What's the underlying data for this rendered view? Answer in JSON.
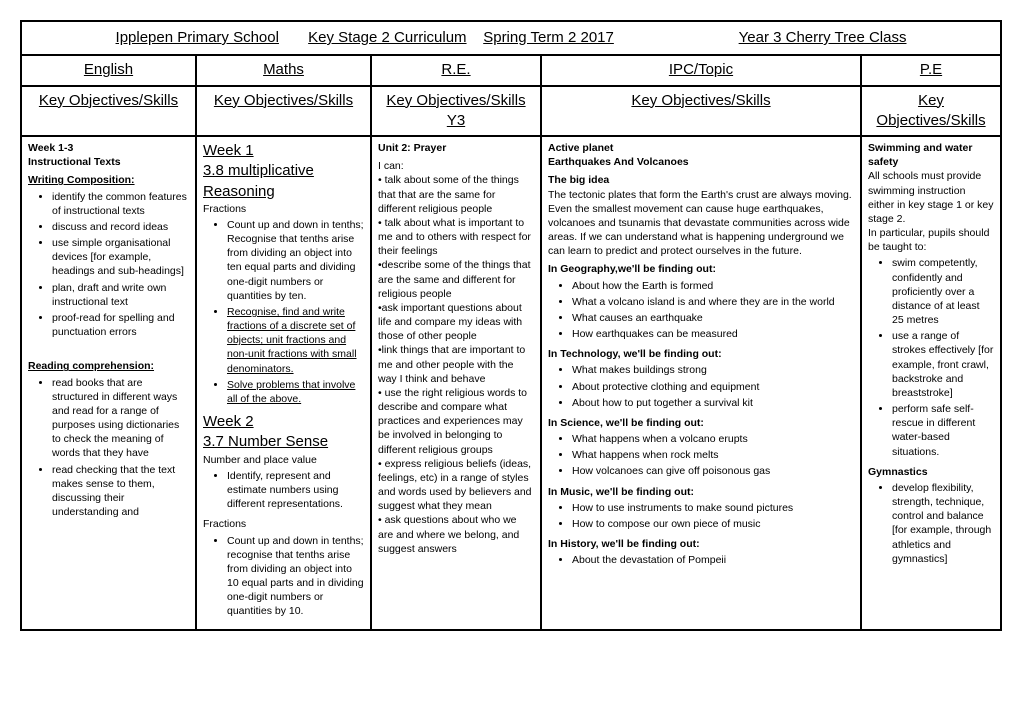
{
  "header": {
    "school": "Ipplepen Primary School",
    "stage": "Key Stage 2 Curriculum",
    "term": "Spring Term 2 2017",
    "class": "Year 3 Cherry Tree Class"
  },
  "subjects": {
    "english": "English",
    "maths": "Maths",
    "re": "R.E.",
    "ipc": "IPC/Topic",
    "pe": "P.E"
  },
  "objHeaders": {
    "english": "Key Objectives/Skills",
    "maths": "Key Objectives/Skills",
    "re": "Key Objectives/Skills Y3",
    "ipc": "Key Objectives/Skills",
    "pe": "Key Objectives/Skills"
  },
  "english": {
    "week": "Week 1-3",
    "topic": "Instructional Texts",
    "writingHdr": "Writing Composition:",
    "writing": [
      "identify the common features of instructional texts",
      "discuss and record ideas",
      "use simple organisational devices [for example, headings and sub-headings]",
      "plan, draft and write own instructional text",
      "proof-read for spelling and punctuation errors"
    ],
    "readingHdr": "Reading comprehension:",
    "reading": [
      "read books that are structured in different ways and read for a range of purposes using dictionaries to check the meaning of words that they have",
      "read checking that the text makes sense to them, discussing their understanding and"
    ]
  },
  "maths": {
    "week1": "Week 1",
    "topic1": "3.8 multiplicative Reasoning",
    "sub1": "Fractions",
    "items1": [
      "Count up and down in tenths; Recognise that tenths arise from dividing an object into ten equal parts and dividing one-digit numbers or quantities by ten.",
      "Recognise, find and write fractions of a discrete set of objects; unit fractions and non-unit fractions with small denominators.",
      "Solve problems that involve all of the above."
    ],
    "week2": "Week 2",
    "topic2": "3.7 Number Sense",
    "sub2a": "Number and place value",
    "items2a": [
      "Identify, represent and estimate numbers using different representations."
    ],
    "sub2b": "Fractions",
    "items2b": [
      "Count up and down in tenths; recognise that tenths arise from dividing an object into 10 equal parts and in dividing one-digit numbers or quantities by 10."
    ]
  },
  "re": {
    "unit": "Unit 2:  Prayer",
    "ican": "I can:",
    "items": [
      " • talk about some of the things that that are the same for different religious people",
      " • talk about what is important to me and to others with respect for their feelings",
      "•describe some of the things that are the same and different for religious people",
      "•ask important questions about life and compare my ideas with those of other people",
      "•link things that are important to me and other people with the way I think and behave",
      "• use the right religious words to describe and compare what practices and experiences may be involved in belonging to different religious groups",
      "• express religious beliefs (ideas, feelings, etc) in a range of styles and words used by believers and suggest what they mean",
      " • ask questions about who we are and where we belong, and suggest answers"
    ]
  },
  "ipc": {
    "title1": "Active planet",
    "title2": "Earthquakes And Volcanoes",
    "bigIdeaHdr": "The big idea",
    "bigIdea": "The tectonic plates that form the Earth's crust are always moving. Even the smallest movement can cause huge earthquakes, volcanoes and tsunamis that devastate communities across wide areas. If we can understand what is happening underground we can learn to predict and protect ourselves in the future.",
    "geoHdr": "In Geography,we'll be finding out:",
    "geo": [
      "About how the Earth is formed",
      "What a volcano island is and where they are in the world",
      "What causes an earthquake",
      "How earthquakes can be measured"
    ],
    "techHdr": "In Technology, we'll be finding out:",
    "tech": [
      "What makes buildings strong",
      "About protective clothing and equipment",
      "About how to put together a survival kit"
    ],
    "sciHdr": "In Science, we'll be finding out:",
    "sci": [
      "What happens when a volcano erupts",
      "What happens when rock melts",
      "How volcanoes can give off poisonous gas"
    ],
    "musHdr": "In Music, we'll be finding out:",
    "mus": [
      "How to use instruments to make sound pictures",
      "How to compose our own piece of music"
    ],
    "histHdr": "In History, we'll be finding out:",
    "hist": [
      "About the devastation of Pompeii"
    ]
  },
  "pe": {
    "swimHdr": "Swimming and water safety",
    "swimIntro": "All schools must provide swimming instruction either in key stage 1 or key stage 2.",
    "swimIntro2": "In particular, pupils should be taught to:",
    "swim": [
      "swim competently, confidently and proficiently over a distance of at least 25 metres",
      "use a range of strokes effectively [for example, front crawl, backstroke and breaststroke]",
      "perform safe self-rescue in different water-based situations."
    ],
    "gymHdr": "Gymnastics",
    "gym": [
      "develop flexibility, strength, technique, control and balance [for example, through athletics and gymnastics]"
    ]
  }
}
